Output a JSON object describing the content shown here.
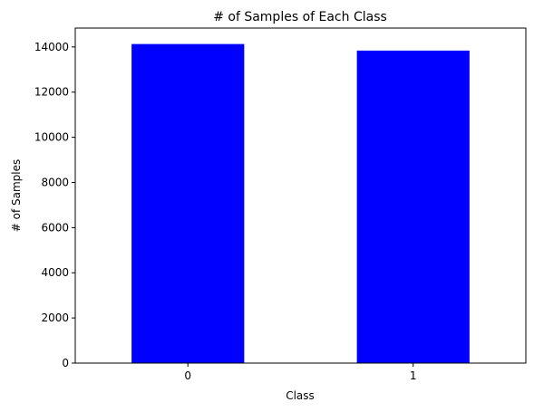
{
  "chart_data": {
    "type": "bar",
    "title": "# of Samples of Each Class",
    "xlabel": "Class",
    "ylabel": "# of Samples",
    "categories": [
      "0",
      "1"
    ],
    "values": [
      14130,
      13840
    ],
    "ylim": [
      0,
      14837
    ],
    "yticks": [
      0,
      2000,
      4000,
      6000,
      8000,
      10000,
      12000,
      14000
    ],
    "bar_color": "#0000ff",
    "grid": false,
    "legend": "none"
  }
}
